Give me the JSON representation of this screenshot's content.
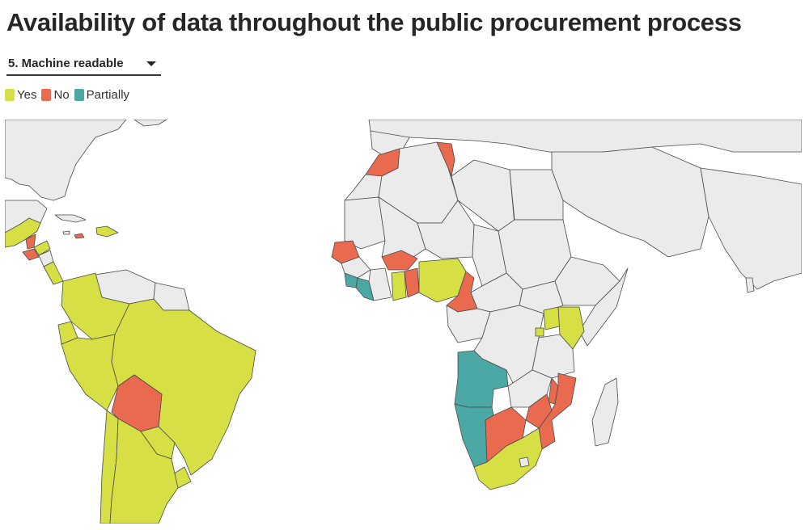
{
  "title": "Availability of data throughout the public procurement process",
  "dropdown": {
    "selected": "5. Machine readable",
    "icon": "chevron-down-icon"
  },
  "legend": [
    {
      "label": "Yes",
      "color": "#d6df43"
    },
    {
      "label": "No",
      "color": "#ea6a4f"
    },
    {
      "label": "Partially",
      "color": "#4ba8a4"
    }
  ],
  "colors": {
    "land": "#ebebeb",
    "border": "#4a4a4a",
    "ocean": "#ffffff"
  }
}
